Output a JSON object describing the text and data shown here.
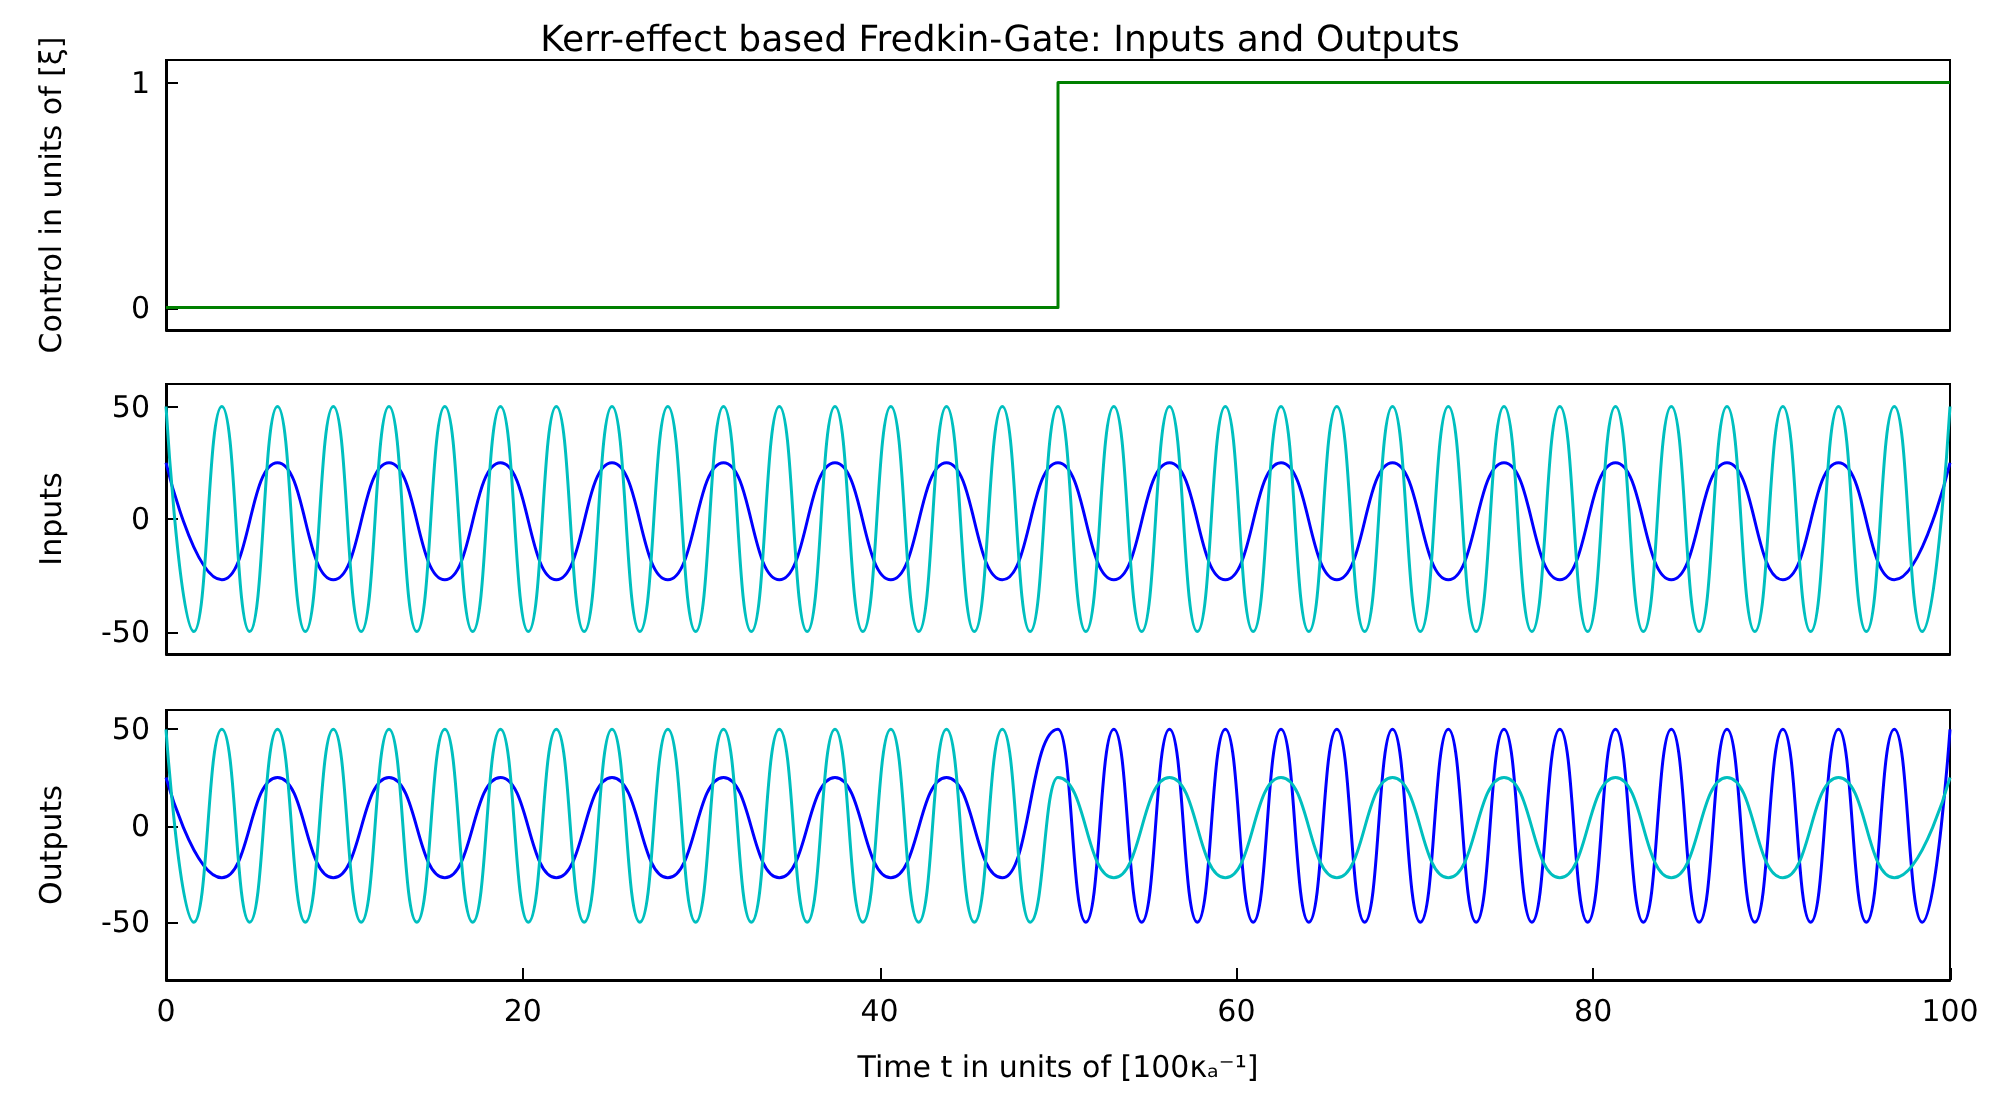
{
  "chart_data": [
    {
      "type": "step",
      "title": "Kerr-effect based Fredkin-Gate: Inputs and Outputs",
      "ylabel": "Control in units of [ξ]",
      "xlim": [
        0,
        100
      ],
      "ylim": [
        -0.1,
        1.1
      ],
      "yticks": [
        0,
        1
      ],
      "tick_labels": "y",
      "grid": false,
      "series": [
        {
          "color": "#008000",
          "x": [
            0,
            50,
            100
          ],
          "values": [
            0,
            1,
            1
          ]
        }
      ]
    },
    {
      "type": "line",
      "ylabel": "Inputs",
      "xlim": [
        0,
        100
      ],
      "ylim": [
        -60,
        60
      ],
      "yticks": [
        -50,
        0,
        50
      ],
      "tick_labels": "y",
      "grid": false,
      "series": [
        {
          "color": "#0000ff",
          "x": [
            0,
            3.13,
            6.25,
            9.38,
            12.5,
            15.63,
            18.75,
            21.88,
            25,
            28.13,
            31.25,
            34.38,
            37.5,
            40.63,
            43.75,
            46.88,
            50,
            53.13,
            56.25,
            59.38,
            62.5,
            65.63,
            68.75,
            71.88,
            75,
            78.13,
            81.25,
            84.38,
            87.5,
            90.63,
            93.75,
            96.88,
            100
          ],
          "values": [
            25,
            -27,
            25,
            -27,
            25,
            -27,
            25,
            -27,
            25,
            -27,
            25,
            -27,
            25,
            -27,
            25,
            -27,
            25,
            -27,
            25,
            -27,
            25,
            -27,
            25,
            -27,
            25,
            -27,
            25,
            -27,
            25,
            -27,
            25,
            -27,
            25
          ]
        },
        {
          "color": "#00bfbf",
          "x": [
            0,
            1.56,
            3.13,
            4.69,
            6.25,
            7.81,
            9.38,
            10.94,
            12.5,
            14.06,
            15.63,
            17.19,
            18.75,
            20.31,
            21.88,
            23.44,
            25,
            26.56,
            28.13,
            29.69,
            31.25,
            32.81,
            34.38,
            35.94,
            37.5,
            39.06,
            40.63,
            42.19,
            43.75,
            45.31,
            46.88,
            48.44,
            50,
            51.56,
            53.13,
            54.69,
            56.25,
            57.81,
            59.38,
            60.94,
            62.5,
            64.06,
            65.63,
            67.19,
            68.75,
            70.31,
            71.88,
            73.44,
            75,
            76.56,
            78.13,
            79.69,
            81.25,
            82.81,
            84.38,
            85.94,
            87.5,
            89.06,
            90.63,
            92.19,
            93.75,
            95.31,
            96.88,
            98.44,
            100
          ],
          "values": [
            50,
            -50,
            50,
            -50,
            50,
            -50,
            50,
            -50,
            50,
            -50,
            50,
            -50,
            50,
            -50,
            50,
            -50,
            50,
            -50,
            50,
            -50,
            50,
            -50,
            50,
            -50,
            50,
            -50,
            50,
            -50,
            50,
            -50,
            50,
            -50,
            50,
            -50,
            50,
            -50,
            50,
            -50,
            50,
            -50,
            50,
            -50,
            50,
            -50,
            50,
            -50,
            50,
            -50,
            50,
            -50,
            50,
            -50,
            50,
            -50,
            50,
            -50,
            50,
            -50,
            50,
            -50,
            50,
            -50,
            50,
            -50,
            50
          ]
        }
      ]
    },
    {
      "type": "line",
      "ylabel": "Outputs",
      "xlabel": "Time t in units of [100κₐ⁻¹]",
      "xlim": [
        0,
        100
      ],
      "xticks": [
        0,
        20,
        40,
        60,
        80,
        100
      ],
      "ylim": [
        -80,
        60
      ],
      "yticks": [
        -50,
        0,
        50
      ],
      "grid": false,
      "series": [
        {
          "color": "#0000ff",
          "x": [
            0,
            3.13,
            6.25,
            9.38,
            12.5,
            15.63,
            18.75,
            21.88,
            25,
            28.13,
            31.25,
            34.38,
            37.5,
            40.63,
            43.75,
            46.88,
            50,
            51.56,
            53.13,
            54.69,
            56.25,
            57.81,
            59.38,
            60.94,
            62.5,
            64.06,
            65.63,
            67.19,
            68.75,
            70.31,
            71.88,
            73.44,
            75,
            76.56,
            78.13,
            79.69,
            81.25,
            82.81,
            84.38,
            85.94,
            87.5,
            89.06,
            90.63,
            92.19,
            93.75,
            95.31,
            96.88,
            98.44,
            100
          ],
          "values": [
            25,
            -27,
            25,
            -27,
            25,
            -27,
            25,
            -27,
            25,
            -27,
            25,
            -27,
            25,
            -27,
            25,
            -27,
            50,
            -50,
            50,
            -50,
            50,
            -50,
            50,
            -50,
            50,
            -50,
            50,
            -50,
            50,
            -50,
            50,
            -50,
            50,
            -50,
            50,
            -50,
            50,
            -50,
            50,
            -50,
            50,
            -50,
            50,
            -50,
            50,
            -50,
            50,
            -50,
            50
          ]
        },
        {
          "color": "#00bfbf",
          "x": [
            0,
            1.56,
            3.13,
            4.69,
            6.25,
            7.81,
            9.38,
            10.94,
            12.5,
            14.06,
            15.63,
            17.19,
            18.75,
            20.31,
            21.88,
            23.44,
            25,
            26.56,
            28.13,
            29.69,
            31.25,
            32.81,
            34.38,
            35.94,
            37.5,
            39.06,
            40.63,
            42.19,
            43.75,
            45.31,
            46.88,
            48.44,
            50,
            53.13,
            56.25,
            59.38,
            62.5,
            65.63,
            68.75,
            71.88,
            75,
            78.13,
            81.25,
            84.38,
            87.5,
            90.63,
            93.75,
            96.88,
            100
          ],
          "values": [
            50,
            -50,
            50,
            -50,
            50,
            -50,
            50,
            -50,
            50,
            -50,
            50,
            -50,
            50,
            -50,
            50,
            -50,
            50,
            -50,
            50,
            -50,
            50,
            -50,
            50,
            -50,
            50,
            -50,
            50,
            -50,
            50,
            -50,
            50,
            -50,
            25,
            -27,
            25,
            -27,
            25,
            -27,
            25,
            -27,
            25,
            -27,
            25,
            -27,
            25,
            -27,
            25,
            -27,
            25
          ]
        }
      ]
    }
  ]
}
